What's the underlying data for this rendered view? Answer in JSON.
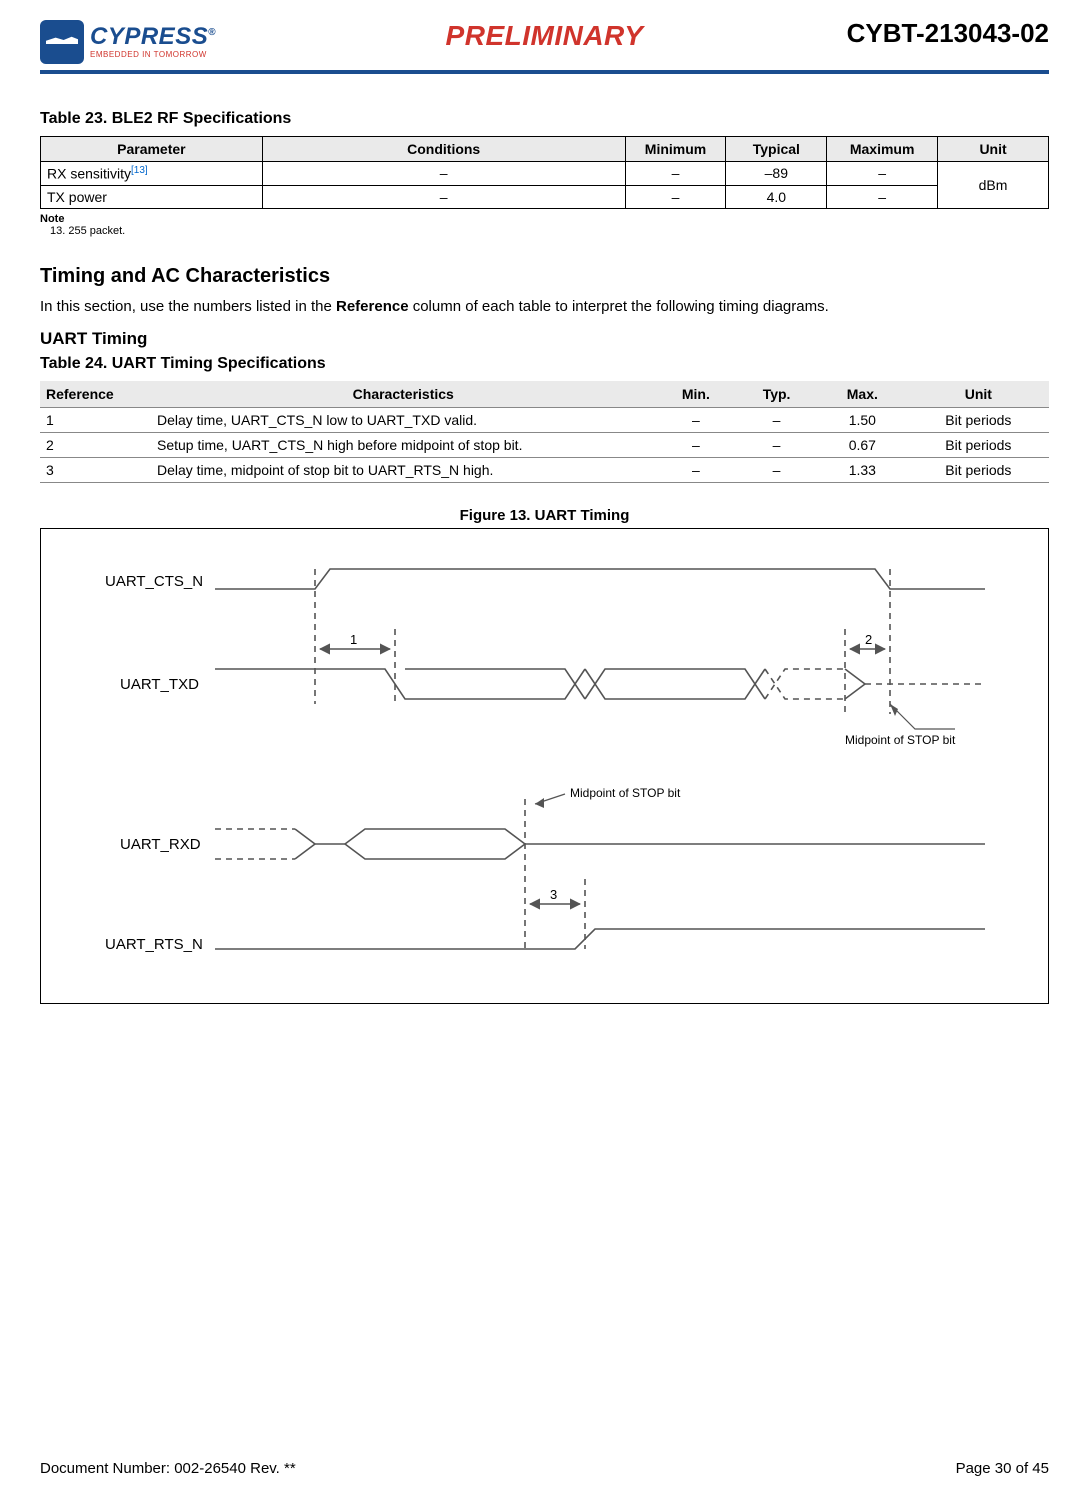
{
  "header": {
    "brand": "CYPRESS",
    "brand_reg": "®",
    "tagline": "EMBEDDED IN TOMORROW",
    "preliminary": "PRELIMINARY",
    "part_number": "CYBT-213043-02",
    "accent_color": "#1a4d8f",
    "red_color": "#d0342c"
  },
  "table23": {
    "caption": "Table 23.  BLE2 RF Specifications",
    "columns": [
      "Parameter",
      "Conditions",
      "Minimum",
      "Typical",
      "Maximum",
      "Unit"
    ],
    "col_widths_pct": [
      22,
      36,
      10,
      10,
      11,
      11
    ],
    "rows": [
      {
        "parameter": "RX sensitivity",
        "note_ref": "[13]",
        "conditions": "–",
        "min": "–",
        "typ": "–89",
        "max": "–"
      },
      {
        "parameter": "TX power",
        "note_ref": "",
        "conditions": "–",
        "min": "–",
        "typ": "4.0",
        "max": "–"
      }
    ],
    "unit_merged": "dBm",
    "note_label": "Note",
    "note_text": "13. 255 packet."
  },
  "section": {
    "h2": "Timing and AC Characteristics",
    "body_prefix": "In this section, use the numbers listed in the ",
    "body_bold": "Reference",
    "body_suffix": " column of each table to interpret the following timing diagrams.",
    "h3": "UART Timing"
  },
  "table24": {
    "caption": "Table 24.  UART Timing Specifications",
    "columns": [
      "Reference",
      "Characteristics",
      "Min.",
      "Typ.",
      "Max.",
      "Unit"
    ],
    "col_widths_pct": [
      11,
      50,
      8,
      8,
      9,
      14
    ],
    "rows": [
      {
        "ref": "1",
        "char": "Delay time, UART_CTS_N low to UART_TXD valid.",
        "min": "–",
        "typ": "–",
        "max": "1.50",
        "unit": "Bit periods"
      },
      {
        "ref": "2",
        "char": "Setup time, UART_CTS_N high before midpoint of stop bit.",
        "min": "–",
        "typ": "–",
        "max": "0.67",
        "unit": "Bit periods"
      },
      {
        "ref": "3",
        "char": "Delay time, midpoint of stop bit to UART_RTS_N high.",
        "min": "–",
        "typ": "–",
        "max": "1.33",
        "unit": "Bit periods"
      }
    ]
  },
  "figure": {
    "caption": "Figure 13.  UART Timing",
    "signals": {
      "cts": "UART_CTS_N",
      "txd": "UART_TXD",
      "rxd": "UART_RXD",
      "rts": "UART_RTS_N"
    },
    "note_mid_stop": "Midpoint of STOP bit",
    "ref_labels": {
      "r1": "1",
      "r2": "2",
      "r3": "3"
    },
    "stroke_color": "#545454",
    "stroke_width": 1.6,
    "dash": "6,5"
  },
  "footer": {
    "left": "Document Number: 002-26540 Rev. **",
    "right": "Page 30 of 45"
  }
}
